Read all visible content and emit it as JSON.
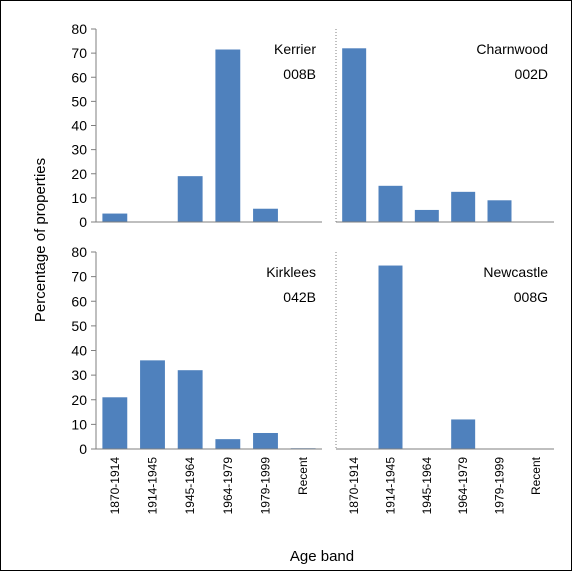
{
  "chart_data": {
    "type": "bar",
    "ylabel": "Percentage of properties",
    "xlabel": "Age band",
    "ylim": [
      0,
      80
    ],
    "yticks": [
      "0",
      "10",
      "20",
      "30",
      "40",
      "50",
      "60",
      "70",
      "80"
    ],
    "categories": [
      "1870-1914",
      "1914-1945",
      "1945-1964",
      "1964-1979",
      "1979-1999",
      "Recent"
    ],
    "grid": false,
    "bar_color": "#4F81BD",
    "panels": [
      {
        "label_line1": "Kerrier",
        "label_line2": "008B",
        "values": [
          3.5,
          0,
          19,
          71.5,
          5.5,
          0
        ]
      },
      {
        "label_line1": "Charnwood",
        "label_line2": "002D",
        "values": [
          72,
          15,
          5,
          12.5,
          9,
          0
        ]
      },
      {
        "label_line1": "Kirklees",
        "label_line2": "042B",
        "values": [
          21,
          36,
          32,
          4,
          6.5,
          0.3
        ]
      },
      {
        "label_line1": "Newcastle",
        "label_line2": "008G",
        "values": [
          0,
          74.5,
          0,
          12,
          0.2,
          0
        ]
      }
    ]
  }
}
